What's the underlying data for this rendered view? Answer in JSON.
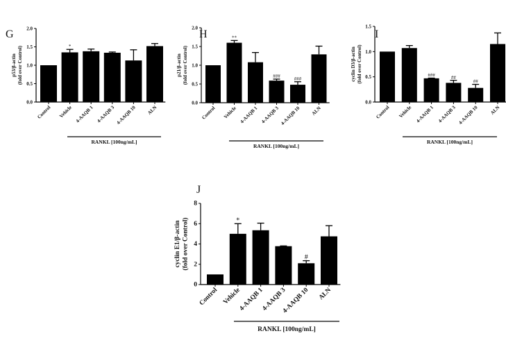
{
  "chart_data": [
    {
      "type": "bar",
      "panel": "G",
      "ylabel": [
        "p53/β-actin",
        "(fold over Control)"
      ],
      "categories": [
        "Control",
        "Vehicle",
        "4-AAQB 1",
        "4-AAQB 3",
        "4-AAQB 10",
        "ALN"
      ],
      "values": [
        1.0,
        1.35,
        1.38,
        1.34,
        1.13,
        1.52
      ],
      "errors": [
        0,
        0.08,
        0.06,
        0.02,
        0.29,
        0.07
      ],
      "annotations": [
        "",
        "*",
        "",
        "",
        "",
        ""
      ],
      "yticks": [
        "0.0",
        "0.5",
        "1.0",
        "1.5",
        "2.0"
      ],
      "ylim": [
        0,
        2.0
      ],
      "group_label": "RANKL [100ng/mL]",
      "bar_color": "#000000"
    },
    {
      "type": "bar",
      "panel": "H",
      "ylabel": [
        "p21/β-actin",
        "(fold over Control)"
      ],
      "categories": [
        "Control",
        "Vehicle",
        "4-AAQB 1",
        "4-AAQB 3",
        "4-AAQB 10",
        "ALN"
      ],
      "values": [
        1.0,
        1.6,
        1.08,
        0.59,
        0.48,
        1.29
      ],
      "errors": [
        0,
        0.06,
        0.26,
        0.04,
        0.08,
        0.22
      ],
      "annotations": [
        "",
        "**",
        "",
        "###",
        "###",
        ""
      ],
      "yticks": [
        "0.0",
        "0.5",
        "1.0",
        "1.5",
        "2.0"
      ],
      "ylim": [
        0,
        2.0
      ],
      "group_label": "RANKL [100ng/mL]",
      "bar_color": "#000000"
    },
    {
      "type": "bar",
      "panel": "I",
      "ylabel": [
        "cyclin D3/β-actin",
        "(fold over Control)"
      ],
      "categories": [
        "Control",
        "Vehicle",
        "4-AAQB 1",
        "4-AAQB 3",
        "4-AAQB 10",
        "ALN"
      ],
      "values": [
        1.0,
        1.07,
        0.47,
        0.38,
        0.28,
        1.15
      ],
      "errors": [
        0,
        0.05,
        0.005,
        0.05,
        0.07,
        0.22
      ],
      "annotations": [
        "",
        "",
        "###",
        "##",
        "##",
        ""
      ],
      "yticks": [
        "0.0",
        "0.5",
        "1.0",
        "1.5"
      ],
      "ylim": [
        0,
        1.5
      ],
      "group_label": "RANKL [100ng/mL]",
      "bar_color": "#000000"
    },
    {
      "type": "bar",
      "panel": "J",
      "ylabel": [
        "cyclin E1/β-actin",
        "(fold over Control)"
      ],
      "categories": [
        "Control",
        "Vehicle",
        "4-AAQB 1",
        "4-AAQB 3",
        "4-AAQB 10",
        "ALN"
      ],
      "values": [
        1.0,
        5.0,
        5.35,
        3.78,
        2.1,
        4.75
      ],
      "errors": [
        0,
        1.0,
        0.7,
        0.03,
        0.25,
        1.05
      ],
      "annotations": [
        "",
        "*",
        "",
        "",
        "#",
        ""
      ],
      "yticks": [
        "0",
        "2",
        "4",
        "6",
        "8"
      ],
      "ylim": [
        0,
        8
      ],
      "group_label": "RANKL [100ng/mL]",
      "bar_color": "#000000"
    }
  ]
}
